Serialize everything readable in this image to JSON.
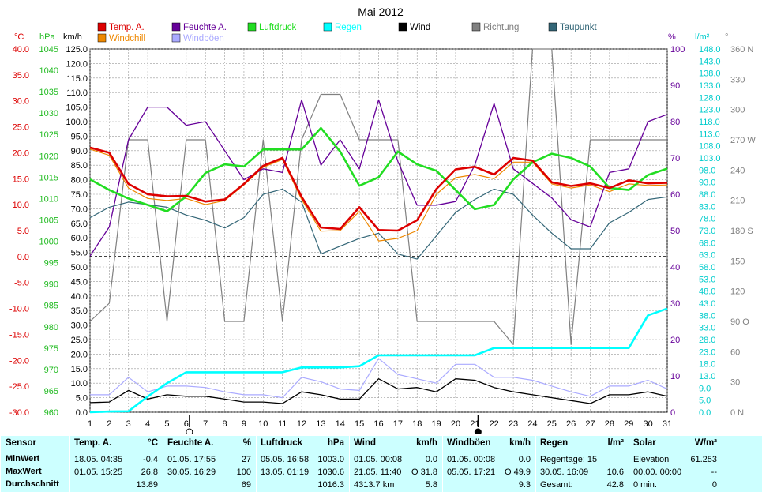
{
  "chart_data": {
    "type": "line",
    "title": "Mai 2012",
    "x": [
      1,
      2,
      3,
      4,
      5,
      6,
      7,
      8,
      9,
      10,
      11,
      12,
      13,
      14,
      15,
      16,
      17,
      18,
      19,
      20,
      21,
      22,
      23,
      24,
      25,
      26,
      27,
      28,
      29,
      30,
      31
    ],
    "x_ticks": [
      "1",
      "2",
      "3",
      "4",
      "5",
      "6",
      "7",
      "8",
      "9",
      "10",
      "11",
      "12",
      "13",
      "14",
      "15",
      "16",
      "17",
      "18",
      "19",
      "20",
      "21",
      "22",
      "23",
      "24",
      "25",
      "26",
      "27",
      "28",
      "29",
      "30",
      "31"
    ],
    "legend": [
      {
        "name": "Temp. A.",
        "color": "#dd0000"
      },
      {
        "name": "Feuchte A.",
        "color": "#660099"
      },
      {
        "name": "Luftdruck",
        "color": "#22dd22"
      },
      {
        "name": "Regen",
        "color": "#00ffff"
      },
      {
        "name": "Wind",
        "color": "#000000"
      },
      {
        "name": "Richtung",
        "color": "#808080"
      },
      {
        "name": "Taupunkt",
        "color": "#336677"
      },
      {
        "name": "Windchill",
        "color": "#ee8800"
      },
      {
        "name": "Windböen",
        "color": "#aaaaff"
      }
    ],
    "axes": {
      "temp": {
        "unit": "°C",
        "range": [
          -30,
          40
        ],
        "ticks": [
          "40.0",
          "35.0",
          "30.0",
          "25.0",
          "20.0",
          "15.0",
          "10.0",
          "5.0",
          "0.0",
          "-5.0",
          "-10.0",
          "-15.0",
          "-20.0",
          "-25.0",
          "-30.0"
        ]
      },
      "pressure": {
        "unit": "hPa",
        "range": [
          960,
          1045
        ],
        "ticks": [
          "1045",
          "1040",
          "1035",
          "1030",
          "1025",
          "1020",
          "1015",
          "1010",
          "1005",
          "1000",
          "995",
          "990",
          "985",
          "980",
          "975",
          "970",
          "965",
          "960"
        ]
      },
      "wind": {
        "unit": "km/h",
        "range": [
          0,
          125
        ],
        "ticks": [
          "125.0",
          "120.0",
          "115.0",
          "110.0",
          "105.0",
          "100.0",
          "95.0",
          "90.0",
          "85.0",
          "80.0",
          "75.0",
          "70.0",
          "65.0",
          "60.0",
          "55.0",
          "50.0",
          "45.0",
          "40.0",
          "35.0",
          "30.0",
          "25.0",
          "20.0",
          "15.0",
          "10.0",
          "5.0",
          "0.0"
        ]
      },
      "humidity": {
        "unit": "%",
        "range": [
          0,
          100
        ],
        "ticks": [
          "100",
          "90",
          "80",
          "70",
          "60",
          "50",
          "40",
          "30",
          "20",
          "10",
          "0"
        ]
      },
      "rain": {
        "unit": "l/m²",
        "range": [
          0,
          150
        ],
        "ticks": [
          "148.0",
          "143.0",
          "138.0",
          "133.0",
          "128.0",
          "123.0",
          "118.0",
          "113.0",
          "108.0",
          "103.0",
          "98.0",
          "93.0",
          "88.0",
          "83.0",
          "78.0",
          "73.0",
          "68.0",
          "63.0",
          "58.0",
          "53.0",
          "48.0",
          "43.0",
          "38.0",
          "33.0",
          "28.0",
          "23.0",
          "18.0",
          "13.0",
          "9.0",
          "5.0",
          "0.0"
        ]
      },
      "direction": {
        "unit": "°",
        "range": [
          0,
          360
        ],
        "ticks": [
          "360 N",
          "330",
          "300",
          "270 W",
          "240",
          "210",
          "180 S",
          "150",
          "120",
          "90 O",
          "60",
          "30",
          "0 N"
        ]
      }
    },
    "series": [
      {
        "name": "Temp. A.",
        "axis": "temp",
        "values": [
          21,
          20,
          14,
          12,
          11.6,
          11.7,
          10.6,
          11,
          14,
          17.5,
          19,
          11.5,
          5.6,
          5.3,
          9.5,
          5.1,
          5,
          7,
          13,
          16.8,
          17.3,
          15.8,
          19,
          18.5,
          14.3,
          13.6,
          14.1,
          13.2,
          14.7,
          14.1,
          14.2
        ]
      },
      {
        "name": "Windchill",
        "axis": "temp",
        "values": [
          20.7,
          19.5,
          13.2,
          11.2,
          10.8,
          11.2,
          10,
          10.8,
          13.8,
          17.2,
          18.7,
          11,
          4.9,
          5,
          8.7,
          3,
          3.5,
          5,
          12,
          15.2,
          15.8,
          15,
          18.2,
          18.2,
          14,
          13.2,
          13.8,
          12.5,
          14,
          13.7,
          13.8
        ]
      },
      {
        "name": "Feuchte A.",
        "axis": "humidity",
        "values": [
          43,
          51,
          75,
          84,
          84,
          79,
          80,
          72,
          64,
          67,
          66,
          86,
          68,
          75,
          67,
          86,
          69,
          57,
          57,
          58,
          68,
          85,
          67,
          63,
          59,
          53,
          51,
          66,
          67,
          80,
          82
        ]
      },
      {
        "name": "Luftdruck",
        "axis": "pressure",
        "values": [
          1014.5,
          1012,
          1010,
          1008.5,
          1007,
          1010.5,
          1016,
          1018,
          1017.5,
          1021.5,
          1021.5,
          1021.5,
          1026.5,
          1021,
          1013,
          1015,
          1021,
          1018,
          1016.5,
          1012,
          1007.5,
          1008.5,
          1014.5,
          1018.5,
          1020.5,
          1019.5,
          1017.5,
          1012.5,
          1012,
          1015.5,
          1017
        ]
      },
      {
        "name": "Taupunkt",
        "axis": "temp",
        "values": [
          7.5,
          9.5,
          10.5,
          10,
          9.5,
          8,
          7,
          5.5,
          7.5,
          12,
          13,
          10.5,
          0.5,
          2,
          3.5,
          4.5,
          0.5,
          -0.5,
          4,
          8.5,
          11,
          13,
          12,
          8,
          4.5,
          1.5,
          1.5,
          6.5,
          8.5,
          11,
          11.5
        ]
      },
      {
        "name": "Wind",
        "axis": "wind",
        "values": [
          3.3,
          3.5,
          7.5,
          4.5,
          6,
          5.5,
          5.5,
          4.5,
          3.5,
          3.5,
          3,
          7,
          6,
          4.5,
          4.5,
          11.5,
          8,
          8.5,
          7,
          11.5,
          11,
          8.5,
          7,
          6,
          5,
          4,
          3,
          6,
          6,
          7,
          5.5
        ]
      },
      {
        "name": "Windböen",
        "axis": "wind",
        "values": [
          6,
          6,
          12,
          7,
          9,
          9,
          8.5,
          7,
          6,
          6,
          5,
          12,
          10.5,
          8,
          7.5,
          18.5,
          13,
          11.5,
          10,
          16.5,
          16.5,
          12,
          12,
          11,
          9,
          7,
          5.5,
          9,
          9,
          11,
          8
        ]
      },
      {
        "name": "Regen",
        "axis": "rain",
        "values": [
          0,
          0.3,
          0.4,
          6.5,
          12,
          16.5,
          16.5,
          16.5,
          16.5,
          16.5,
          16.5,
          18.5,
          18.5,
          18.5,
          19,
          23.5,
          23.5,
          23.5,
          23.5,
          23.5,
          23.5,
          26.5,
          26.5,
          26.5,
          26.5,
          26.5,
          26.5,
          26.5,
          26.5,
          40,
          42.8
        ]
      },
      {
        "name": "Richtung",
        "axis": "direction",
        "values": [
          90,
          108,
          270,
          270,
          90,
          270,
          270,
          90,
          90,
          270,
          90,
          270,
          315,
          315,
          270,
          270,
          270,
          90,
          90,
          90,
          90,
          90,
          67,
          360,
          360,
          67,
          270,
          270,
          270,
          270,
          270
        ]
      }
    ],
    "grid": true,
    "zero_line": "dashed",
    "moon_phases": [
      {
        "day": 6,
        "phase": "full"
      },
      {
        "day": 21,
        "phase": "new"
      }
    ]
  },
  "stats": {
    "sensor": {
      "title": "Sensor",
      "rows": [
        "MinWert",
        "MaxWert",
        "Durchschnitt"
      ]
    },
    "temp": {
      "title": "Temp. A.",
      "unit": "°C",
      "min_time": "18.05.  04:35",
      "min_val": "-0.4",
      "max_time": "01.05.  15:25",
      "max_val": "26.8",
      "avg": "13.89"
    },
    "humidity": {
      "title": "Feuchte A.",
      "unit": "%",
      "min_time": "01.05.  17:55",
      "min_val": "27",
      "max_time": "30.05.  16:29",
      "max_val": "100",
      "avg": "69"
    },
    "pressure": {
      "title": "Luftdruck",
      "unit": "hPa",
      "min_time": "05.05.  16:58",
      "min_val": "1003.0",
      "max_time": "13.05.  01:19",
      "max_val": "1030.6",
      "avg": "1016.3"
    },
    "wind": {
      "title": "Wind",
      "unit": "km/h",
      "min_time": "01.05.  00:08",
      "min_val": "0.0",
      "max_time": "21.05.  11:40",
      "max_val": "O 31.8",
      "avg_extra": "4313.7 km",
      "avg": "5.8"
    },
    "gust": {
      "title": "Windböen",
      "unit": "km/h",
      "min_time": "01.05.  00:08",
      "min_val": "0.0",
      "max_time": "05.05.  17:21",
      "max_val": "O 49.9",
      "avg": "9.3"
    },
    "rain": {
      "title": "Regen",
      "unit": "l/m²",
      "row1": "Regentage: 15",
      "max_time": "30.05.  16:09",
      "max_val": "10.6",
      "total_label": "Gesamt:",
      "total": "42.8"
    },
    "solar": {
      "title": "Solar",
      "unit": "W/m²",
      "row1_label": "Elevation",
      "row1_val": "61.253",
      "row2_label": "00.00.  00:00",
      "row2_val": "--",
      "row3_label": "0 min.",
      "row3_val": "0"
    }
  }
}
